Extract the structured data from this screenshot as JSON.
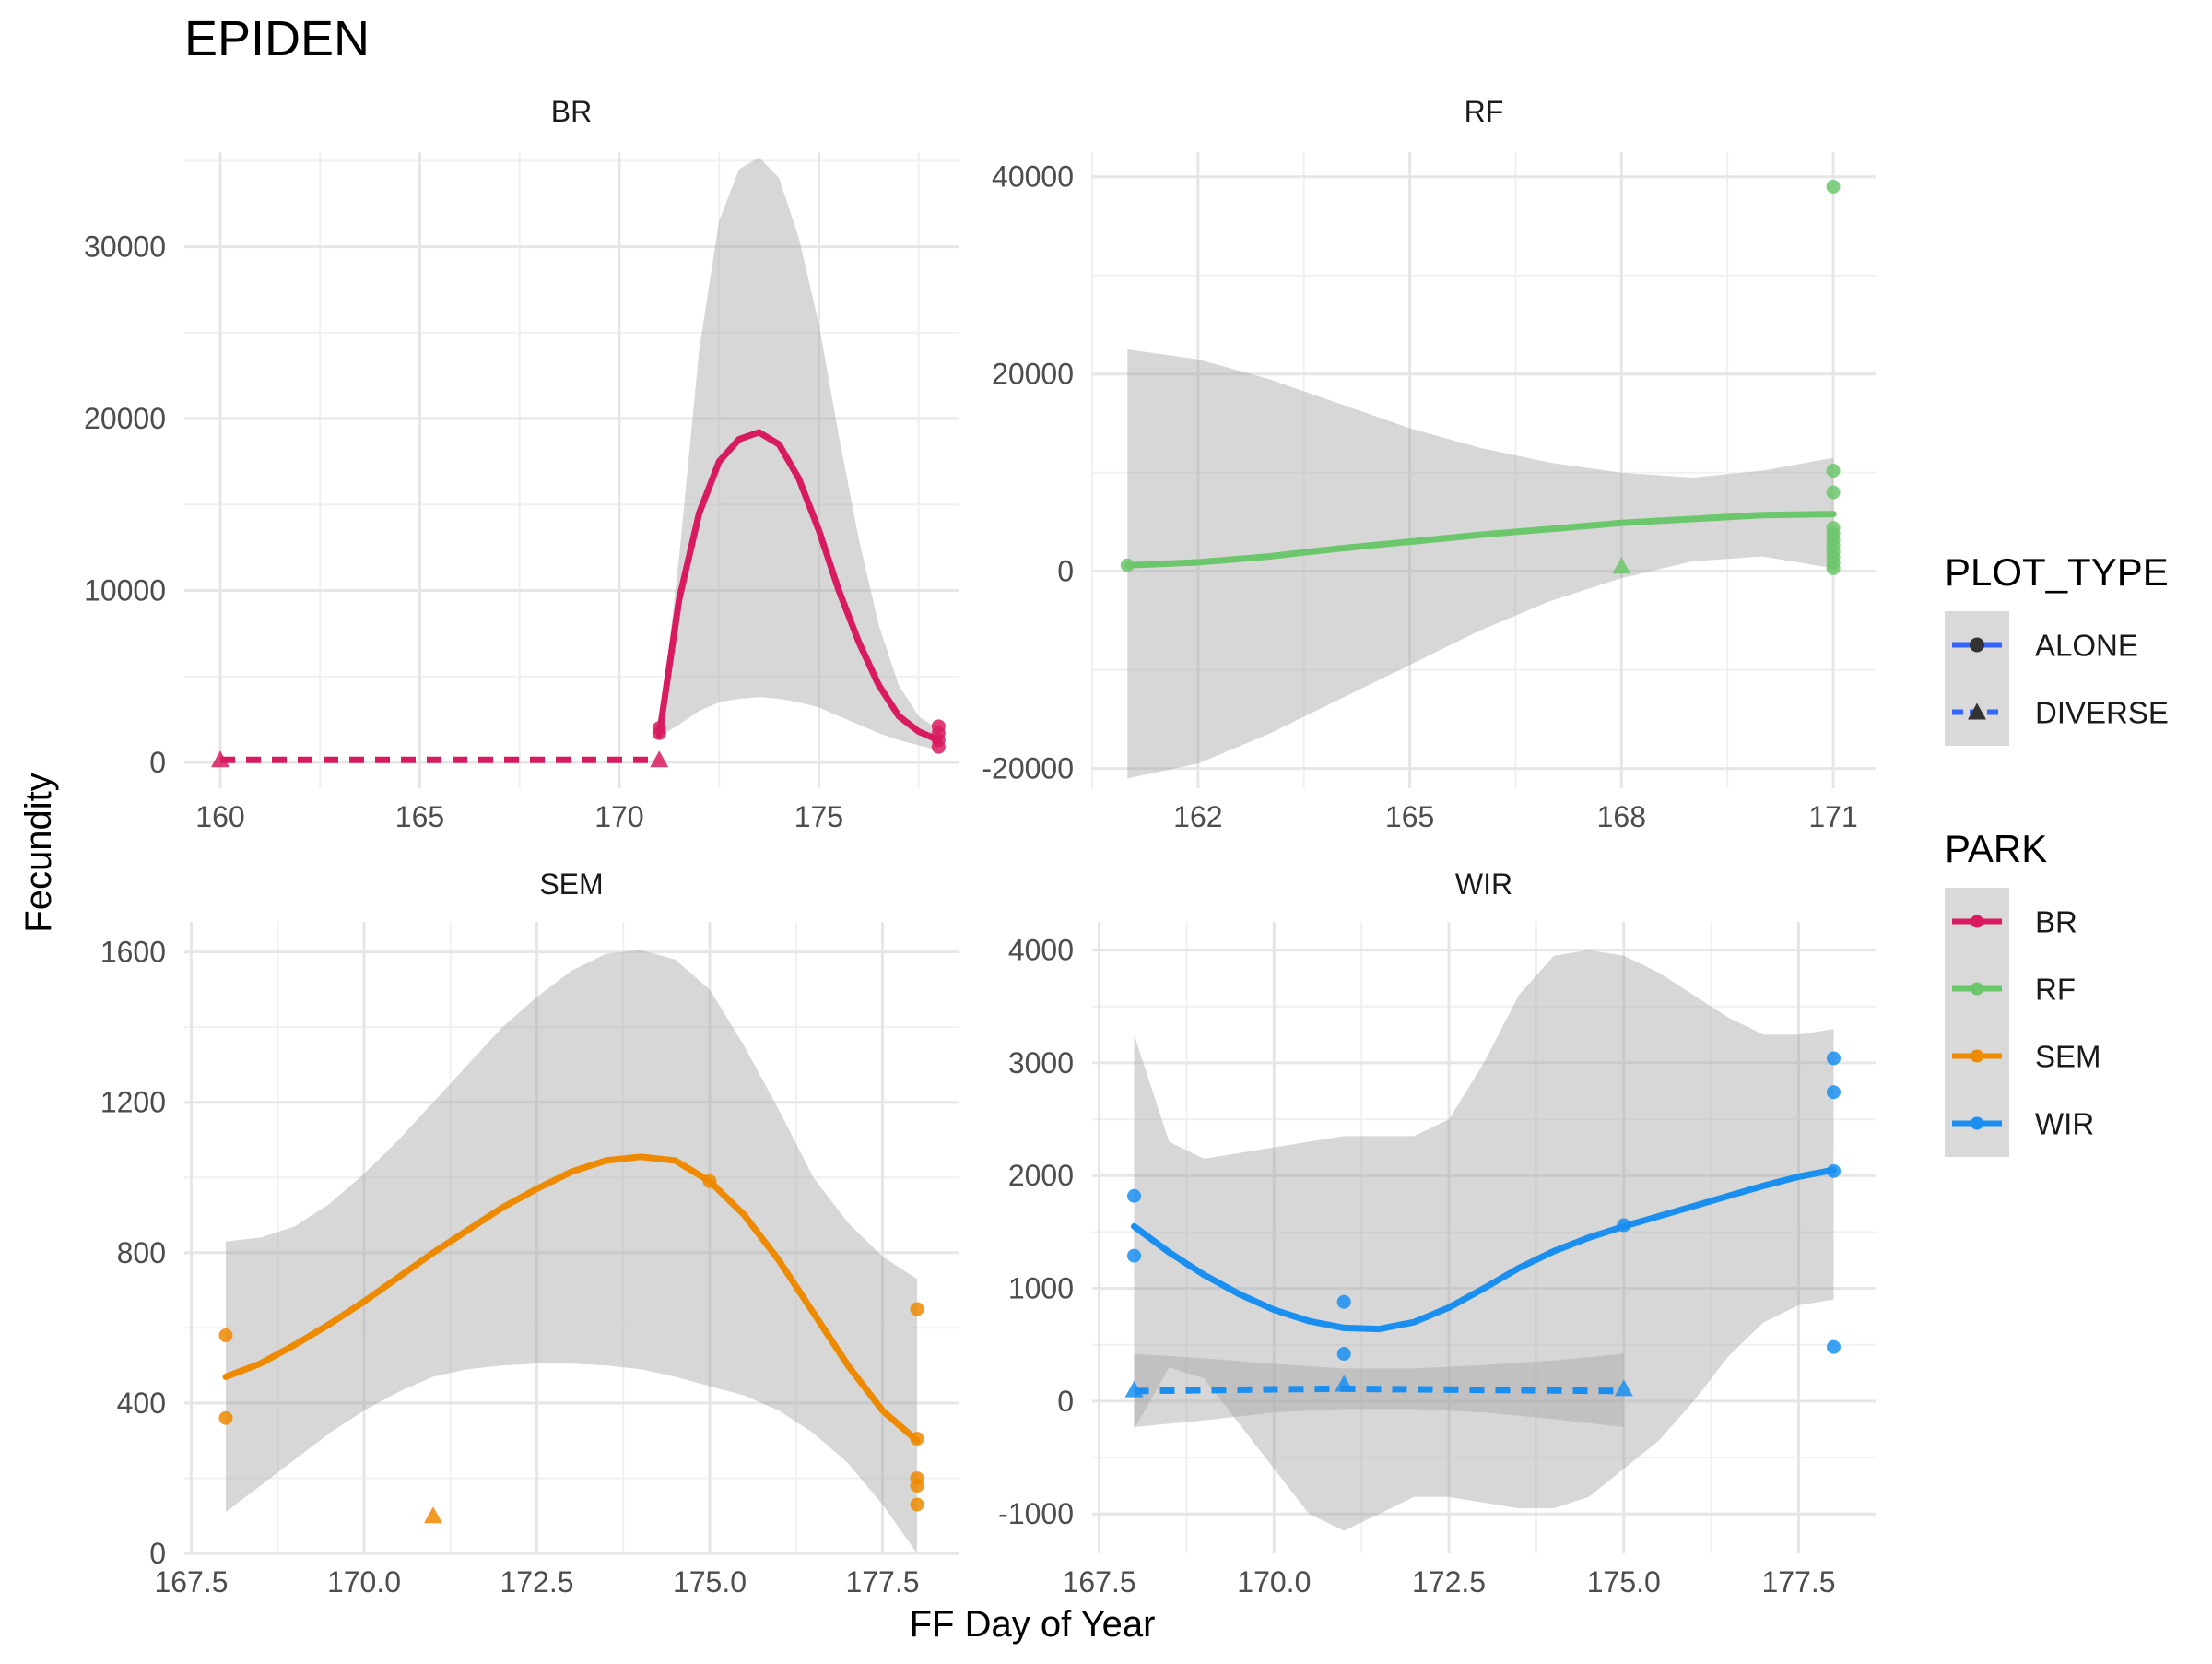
{
  "chart_data": {
    "type": "scatter",
    "title": "EPIDEN",
    "xlabel": "FF Day of Year",
    "ylabel": "Fecundity",
    "legends": [
      {
        "title": "PLOT_TYPE",
        "items": [
          {
            "label": "ALONE",
            "shape": "circle",
            "linetype": "solid"
          },
          {
            "label": "DIVERSE",
            "shape": "triangle",
            "linetype": "dashed"
          }
        ]
      },
      {
        "title": "PARK",
        "items": [
          {
            "label": "BR",
            "color": "#d81b60"
          },
          {
            "label": "RF",
            "color": "#6cc76c"
          },
          {
            "label": "SEM",
            "color": "#ee8a00"
          },
          {
            "label": "WIR",
            "color": "#1a8ff0"
          }
        ]
      }
    ],
    "panels": [
      {
        "name": "BR",
        "color": "#d81b60",
        "xlim": [
          159.1,
          178.5
        ],
        "ylim": [
          -1500,
          35500
        ],
        "xticks": [
          160,
          165,
          170,
          175
        ],
        "yticks": [
          0,
          10000,
          20000,
          30000
        ],
        "xtick_labels": [
          "160",
          "165",
          "170",
          "175"
        ],
        "ytick_labels": [
          "0",
          "10000",
          "20000",
          "30000"
        ],
        "points_alone": [
          [
            171,
            1700
          ],
          [
            171,
            2000
          ],
          [
            178,
            900
          ],
          [
            178,
            1300
          ],
          [
            178,
            1700
          ],
          [
            178,
            2100
          ]
        ],
        "points_diverse": [
          [
            160,
            150
          ],
          [
            171,
            150
          ]
        ],
        "smooth_alone": [
          [
            171,
            1600
          ],
          [
            171.5,
            9500
          ],
          [
            172,
            14500
          ],
          [
            172.5,
            17500
          ],
          [
            173,
            18800
          ],
          [
            173.5,
            19200
          ],
          [
            174,
            18500
          ],
          [
            174.5,
            16500
          ],
          [
            175,
            13500
          ],
          [
            175.5,
            10000
          ],
          [
            176,
            7000
          ],
          [
            176.5,
            4500
          ],
          [
            177,
            2700
          ],
          [
            177.5,
            1800
          ],
          [
            178,
            1300
          ]
        ],
        "band_alone": {
          "x": [
            171,
            171.5,
            172,
            172.5,
            173,
            173.5,
            174,
            174.5,
            175,
            175.5,
            176,
            176.5,
            177,
            177.5,
            178
          ],
          "upper": [
            1700,
            12000,
            24000,
            31500,
            34500,
            35200,
            34000,
            30500,
            25500,
            19000,
            13000,
            8000,
            4500,
            2700,
            1900
          ],
          "lower": [
            1500,
            2200,
            3000,
            3500,
            3700,
            3800,
            3700,
            3500,
            3200,
            2700,
            2200,
            1700,
            1300,
            1000,
            700
          ]
        },
        "smooth_diverse": [
          [
            160,
            150
          ],
          [
            171,
            150
          ]
        ],
        "band_diverse": null
      },
      {
        "name": "RF",
        "color": "#6cc76c",
        "xlim": [
          160.5,
          171.6
        ],
        "ylim": [
          -22000,
          42500
        ],
        "xticks": [
          162,
          165,
          168,
          171
        ],
        "yticks": [
          -20000,
          0,
          20000,
          40000
        ],
        "xtick_labels": [
          "162",
          "165",
          "168",
          "171"
        ],
        "ytick_labels": [
          "-20000",
          "0",
          "20000",
          "40000"
        ],
        "points_alone": [
          [
            161,
            600
          ],
          [
            171,
            39000
          ],
          [
            171,
            10200
          ],
          [
            171,
            8000
          ],
          [
            171,
            4400
          ],
          [
            171,
            3800
          ],
          [
            171,
            3200
          ],
          [
            171,
            2600
          ],
          [
            171,
            2000
          ],
          [
            171,
            1400
          ],
          [
            171,
            800
          ],
          [
            171,
            300
          ]
        ],
        "points_diverse": [
          [
            168,
            500
          ]
        ],
        "smooth_alone": [
          [
            161,
            600
          ],
          [
            162,
            900
          ],
          [
            163,
            1500
          ],
          [
            164,
            2300
          ],
          [
            165,
            3000
          ],
          [
            166,
            3700
          ],
          [
            167,
            4300
          ],
          [
            168,
            4900
          ],
          [
            169,
            5300
          ],
          [
            170,
            5700
          ],
          [
            171,
            5800
          ]
        ],
        "band_alone": {
          "x": [
            161,
            162,
            163,
            164,
            165,
            166,
            167,
            168,
            169,
            170,
            171
          ],
          "upper": [
            22500,
            21500,
            19500,
            17000,
            14500,
            12500,
            11000,
            10000,
            9500,
            10200,
            11500
          ],
          "lower": [
            -21000,
            -19500,
            -16500,
            -13000,
            -9500,
            -6000,
            -3000,
            -700,
            1000,
            1500,
            300
          ]
        },
        "smooth_diverse": null,
        "band_diverse": null
      },
      {
        "name": "SEM",
        "color": "#ee8a00",
        "xlim": [
          167.4,
          178.6
        ],
        "ylim": [
          0,
          1680
        ],
        "xticks": [
          167.5,
          170,
          172.5,
          175,
          177.5
        ],
        "yticks": [
          0,
          400,
          800,
          1200,
          1600
        ],
        "xtick_labels": [
          "167.5",
          "170.0",
          "172.5",
          "175.0",
          "177.5"
        ],
        "ytick_labels": [
          "0",
          "400",
          "800",
          "1200",
          "1600"
        ],
        "points_alone": [
          [
            168,
            580
          ],
          [
            168,
            360
          ],
          [
            175,
            990
          ],
          [
            178,
            650
          ],
          [
            178,
            305
          ],
          [
            178,
            200
          ],
          [
            178,
            180
          ],
          [
            178,
            130
          ]
        ],
        "points_diverse": [
          [
            171,
            100
          ]
        ],
        "smooth_alone": [
          [
            168,
            470
          ],
          [
            168.5,
            505
          ],
          [
            169,
            555
          ],
          [
            169.5,
            610
          ],
          [
            170,
            670
          ],
          [
            170.5,
            735
          ],
          [
            171,
            800
          ],
          [
            171.5,
            860
          ],
          [
            172,
            920
          ],
          [
            172.5,
            970
          ],
          [
            173,
            1015
          ],
          [
            173.5,
            1045
          ],
          [
            174,
            1055
          ],
          [
            174.5,
            1045
          ],
          [
            175,
            990
          ],
          [
            175.5,
            900
          ],
          [
            176,
            780
          ],
          [
            176.5,
            640
          ],
          [
            177,
            500
          ],
          [
            177.5,
            380
          ],
          [
            178,
            300
          ]
        ],
        "band_alone": {
          "x": [
            168,
            168.5,
            169,
            169.5,
            170,
            170.5,
            171,
            171.5,
            172,
            172.5,
            173,
            173.5,
            174,
            174.5,
            175,
            175.5,
            176,
            176.5,
            177,
            177.5,
            178
          ],
          "upper": [
            830,
            840,
            870,
            930,
            1010,
            1100,
            1200,
            1300,
            1400,
            1480,
            1550,
            1595,
            1605,
            1580,
            1500,
            1350,
            1180,
            1000,
            880,
            790,
            730
          ],
          "lower": [
            110,
            180,
            250,
            320,
            380,
            430,
            470,
            490,
            500,
            505,
            505,
            500,
            490,
            470,
            445,
            420,
            380,
            320,
            240,
            130,
            0
          ]
        },
        "smooth_diverse": null,
        "band_diverse": null
      },
      {
        "name": "WIR",
        "color": "#1a8ff0",
        "xlim": [
          167.4,
          178.6
        ],
        "ylim": [
          -1350,
          4250
        ],
        "xticks": [
          167.5,
          170,
          172.5,
          175,
          177.5
        ],
        "yticks": [
          -1000,
          0,
          1000,
          2000,
          3000,
          4000
        ],
        "xtick_labels": [
          "167.5",
          "170.0",
          "172.5",
          "175.0",
          "177.5"
        ],
        "ytick_labels": [
          "-1000",
          "0",
          "1000",
          "2000",
          "3000",
          "4000"
        ],
        "points_alone": [
          [
            168,
            1820
          ],
          [
            168,
            1290
          ],
          [
            171,
            880
          ],
          [
            171,
            420
          ],
          [
            175,
            1560
          ],
          [
            178,
            3040
          ],
          [
            178,
            2740
          ],
          [
            178,
            2040
          ],
          [
            178,
            480
          ]
        ],
        "points_diverse": [
          [
            168,
            100
          ],
          [
            171,
            150
          ],
          [
            175,
            110
          ]
        ],
        "smooth_alone": [
          [
            168,
            1550
          ],
          [
            168.5,
            1320
          ],
          [
            169,
            1120
          ],
          [
            169.5,
            950
          ],
          [
            170,
            810
          ],
          [
            170.5,
            710
          ],
          [
            171,
            650
          ],
          [
            171.5,
            640
          ],
          [
            172,
            700
          ],
          [
            172.5,
            830
          ],
          [
            173,
            1000
          ],
          [
            173.5,
            1180
          ],
          [
            174,
            1330
          ],
          [
            174.5,
            1450
          ],
          [
            175,
            1550
          ],
          [
            175.5,
            1640
          ],
          [
            176,
            1730
          ],
          [
            176.5,
            1820
          ],
          [
            177,
            1910
          ],
          [
            177.5,
            1990
          ],
          [
            178,
            2050
          ]
        ],
        "band_alone": {
          "x": [
            168,
            168.5,
            169,
            169.5,
            170,
            170.5,
            171,
            171.5,
            172,
            172.5,
            173,
            173.5,
            174,
            174.5,
            175,
            175.5,
            176,
            176.5,
            177,
            177.5,
            178
          ],
          "upper": [
            3250,
            2300,
            2150,
            2200,
            2250,
            2300,
            2350,
            2350,
            2350,
            2500,
            3000,
            3600,
            3950,
            4000,
            3950,
            3800,
            3600,
            3400,
            3250,
            3250,
            3300
          ],
          "lower": [
            -250,
            300,
            200,
            -200,
            -600,
            -1000,
            -1150,
            -1000,
            -850,
            -850,
            -900,
            -950,
            -950,
            -850,
            -600,
            -350,
            0,
            400,
            700,
            850,
            900
          ]
        },
        "smooth_diverse": [
          [
            168,
            90
          ],
          [
            170,
            105
          ],
          [
            171,
            110
          ],
          [
            173,
            100
          ],
          [
            175,
            90
          ]
        ],
        "band_diverse": {
          "x": [
            168,
            169,
            170,
            171,
            172,
            173,
            174,
            175
          ],
          "upper": [
            420,
            380,
            330,
            290,
            290,
            320,
            360,
            420
          ],
          "lower": [
            -230,
            -170,
            -100,
            -70,
            -70,
            -100,
            -160,
            -230
          ]
        }
      }
    ]
  }
}
